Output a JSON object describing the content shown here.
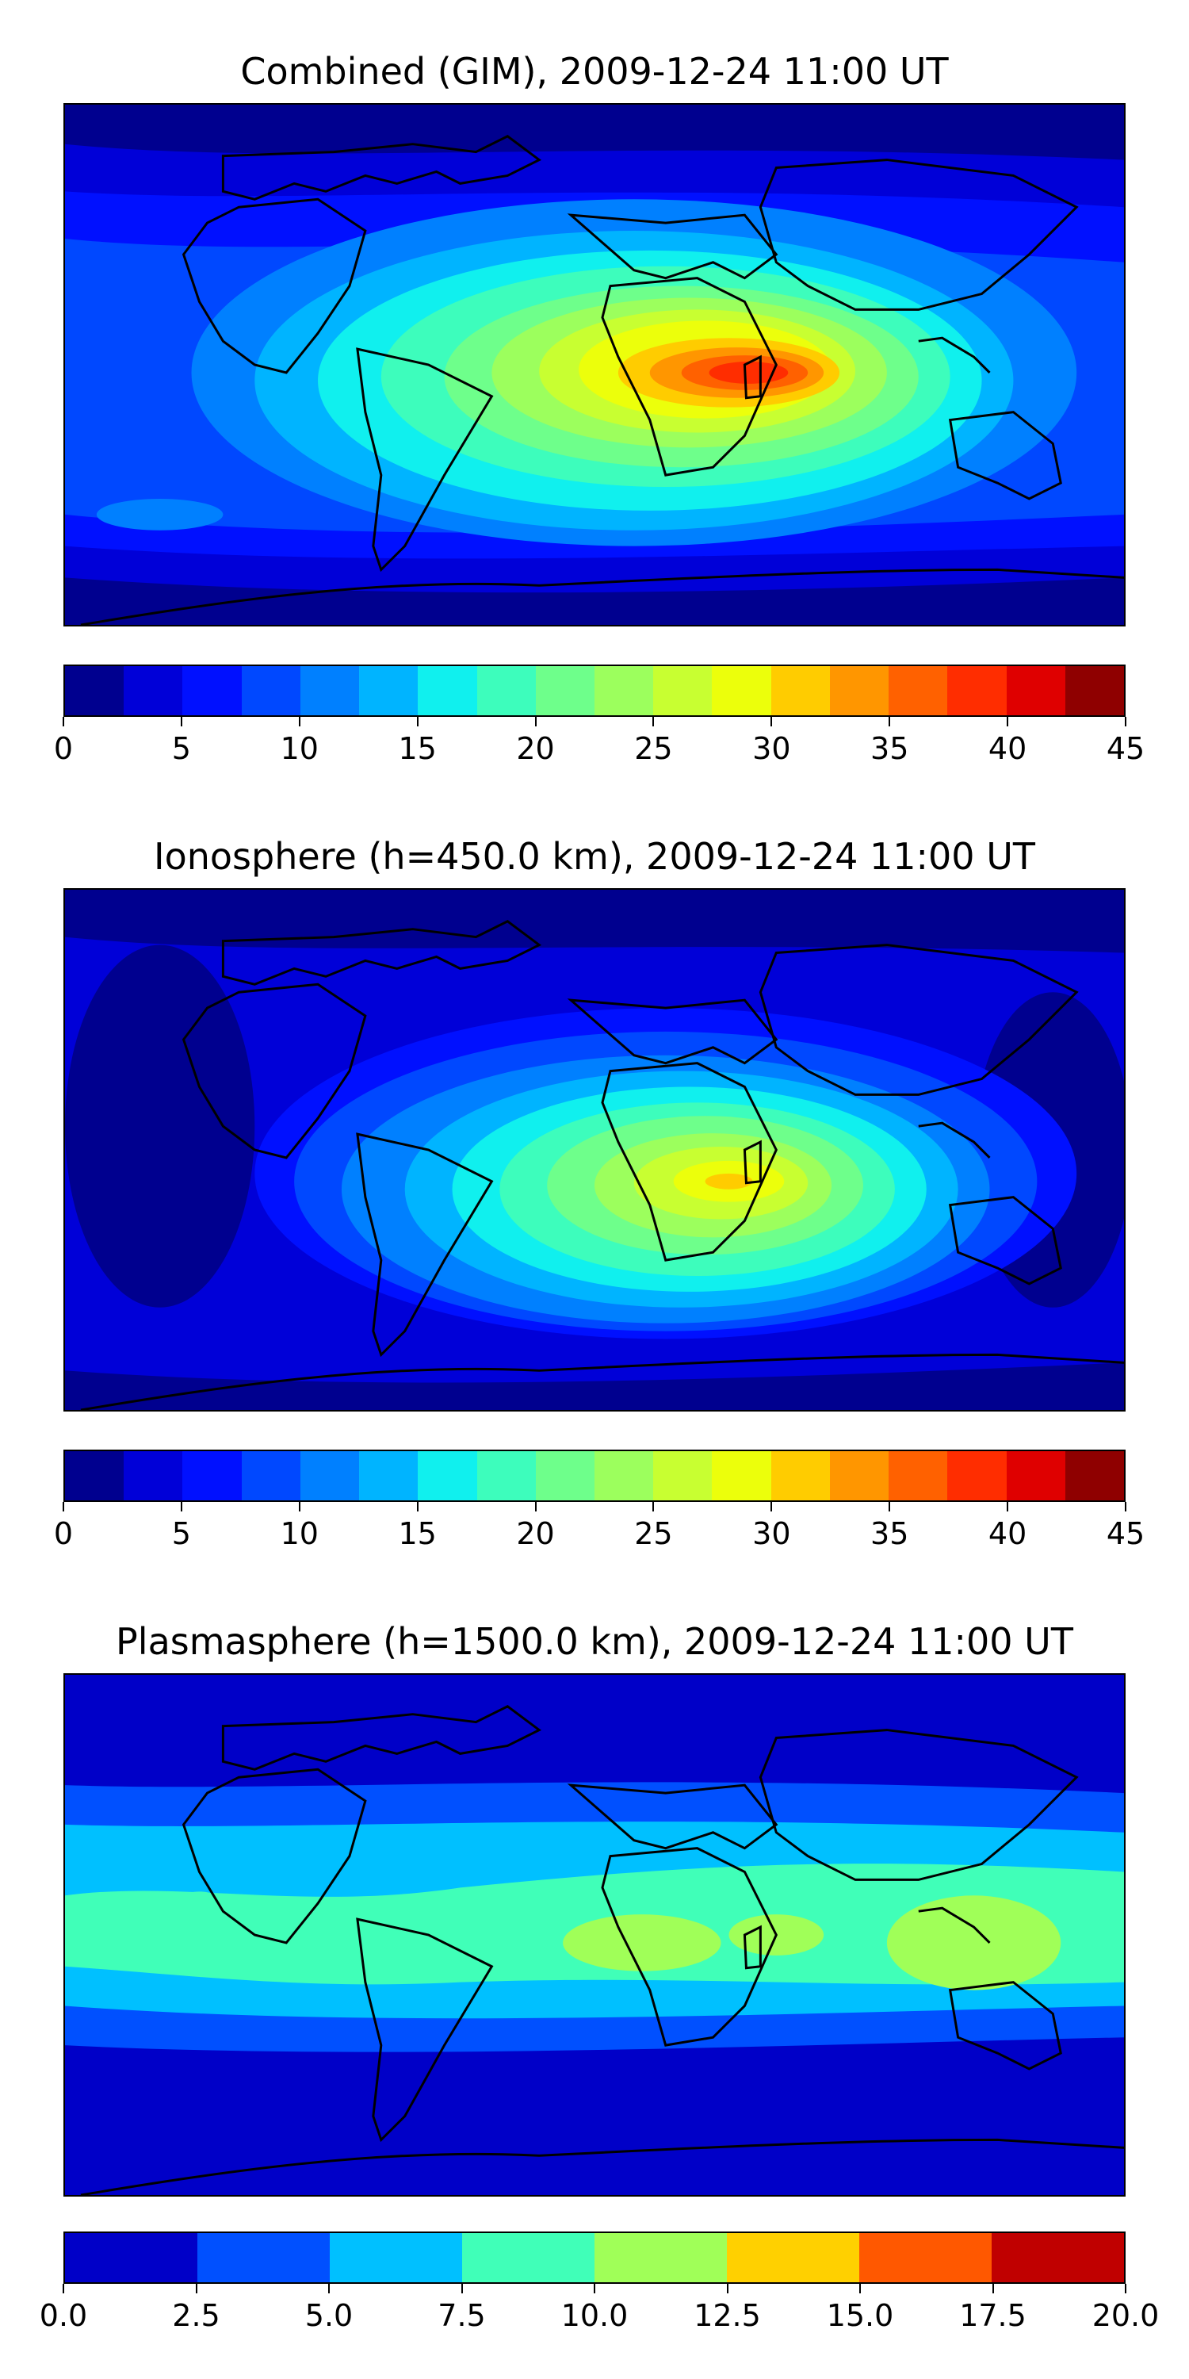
{
  "panels": [
    {
      "title": "Combined (GIM), 2009-12-24 11:00 UT",
      "colorbar": {
        "colors": [
          "#00008f",
          "#0000d8",
          "#0010ff",
          "#0048ff",
          "#0080ff",
          "#00b4ff",
          "#10f0ee",
          "#3dfdbc",
          "#6eff8b",
          "#9cff5d",
          "#c8ff31",
          "#ecff0b",
          "#ffcc00",
          "#ff9600",
          "#ff6100",
          "#ff2d00",
          "#df0000",
          "#8f0000"
        ],
        "ticks": [
          "0",
          "5",
          "10",
          "15",
          "20",
          "25",
          "30",
          "35",
          "40",
          "45"
        ]
      }
    },
    {
      "title": "Ionosphere  (h=450.0 km), 2009-12-24 11:00 UT",
      "colorbar": {
        "colors": [
          "#00008f",
          "#0000d8",
          "#0010ff",
          "#0048ff",
          "#0080ff",
          "#00b4ff",
          "#10f0ee",
          "#3dfdbc",
          "#6eff8b",
          "#9cff5d",
          "#c8ff31",
          "#ecff0b",
          "#ffcc00",
          "#ff9600",
          "#ff6100",
          "#ff2d00",
          "#df0000",
          "#8f0000"
        ],
        "ticks": [
          "0",
          "5",
          "10",
          "15",
          "20",
          "25",
          "30",
          "35",
          "40",
          "45"
        ]
      }
    },
    {
      "title": "Plasmasphere (h=1500.0 km), 2009-12-24 11:00 UT",
      "colorbar": {
        "colors": [
          "#0000c8",
          "#0050ff",
          "#00c0ff",
          "#40ffb8",
          "#a0ff58",
          "#ffd000",
          "#ff5800",
          "#c00000"
        ],
        "ticks": [
          "0.0",
          "2.5",
          "5.0",
          "7.5",
          "10.0",
          "12.5",
          "15.0",
          "17.5",
          "20.0"
        ]
      }
    }
  ]
}
